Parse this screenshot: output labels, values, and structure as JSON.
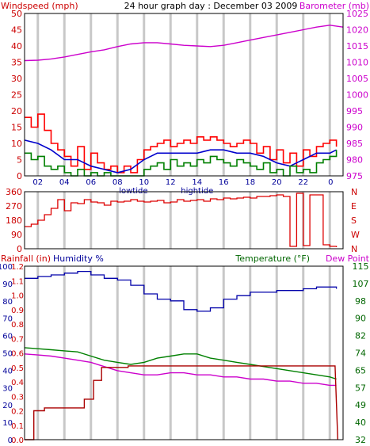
{
  "header": {
    "left_label": "Windspeed (mph)",
    "title": "24 hour graph day : December 03 2009",
    "right_label": "Barometer (mb)"
  },
  "colors": {
    "wind_axis": "#cc0000",
    "baro_axis": "#cc00cc",
    "humidity_axis": "#000099",
    "temp_axis": "#006600",
    "wind": "#ff0000",
    "gust_avg": "#0000cc",
    "wind_low": "#008000",
    "baro": "#cc00cc",
    "dir": "#dd0000",
    "humidity": "#0000aa",
    "temperature": "#008000",
    "dewpoint": "#cc00cc",
    "rain": "#aa0000",
    "grid": "#c8c8c8",
    "frame": "#000000"
  },
  "time_axis": {
    "ticks": [
      "02",
      "04",
      "06",
      "08",
      "10",
      "12",
      "14",
      "16",
      "18",
      "20",
      "22",
      "0"
    ],
    "tide_low": "lowtide",
    "tide_high": "hightide"
  },
  "chart_data": [
    {
      "type": "line",
      "name": "wind-barometer",
      "title": "24 hour graph day : December 03 2009",
      "ylabel_left": "Windspeed (mph)",
      "ylabel_right": "Barometer (mb)",
      "xlim": [
        0,
        24
      ],
      "ylim_left": [
        0,
        50
      ],
      "ylim_right": [
        975,
        1025
      ],
      "yticks_left": [
        "0",
        "5",
        "10",
        "15",
        "20",
        "25",
        "30",
        "35",
        "40",
        "45",
        "50"
      ],
      "yticks_right": [
        "975",
        "980",
        "985",
        "990",
        "995",
        "1000",
        "1005",
        "1010",
        "1015",
        "1020",
        "1025"
      ],
      "series": [
        {
          "axis": "right",
          "role": "baro",
          "x": [
            0,
            1,
            2,
            3,
            4,
            5,
            6,
            7,
            8,
            9,
            10,
            11,
            12,
            13,
            14,
            15,
            16,
            17,
            18,
            19,
            20,
            21,
            22,
            23,
            24
          ],
          "y": [
            1010.5,
            1010.6,
            1011,
            1011.6,
            1012.4,
            1013.2,
            1013.8,
            1014.8,
            1015.6,
            1016,
            1016,
            1015.6,
            1015.2,
            1015,
            1014.8,
            1015.2,
            1016,
            1016.8,
            1017.6,
            1018.4,
            1019.2,
            1020,
            1020.8,
            1021.4,
            1020.8
          ]
        },
        {
          "axis": "left",
          "role": "wind",
          "x": [
            0,
            0.5,
            1,
            1.5,
            2,
            2.5,
            3,
            3.5,
            4,
            4.5,
            5,
            5.5,
            6,
            6.5,
            7,
            7.5,
            8,
            8.5,
            9,
            9.5,
            10,
            10.5,
            11,
            11.5,
            12,
            12.5,
            13,
            13.5,
            14,
            14.5,
            15,
            15.5,
            16,
            16.5,
            17,
            17.5,
            18,
            18.5,
            19,
            19.5,
            20,
            20.5,
            21,
            21.5,
            22,
            22.5,
            23,
            23.5
          ],
          "y": [
            18,
            15,
            19,
            14,
            10,
            8,
            6,
            3,
            9,
            2,
            7,
            4,
            2,
            3,
            1,
            3,
            1,
            5,
            8,
            9,
            10,
            11,
            9,
            10,
            11,
            10,
            12,
            11,
            12,
            11,
            10,
            9,
            10,
            11,
            10,
            7,
            9,
            5,
            8,
            4,
            7,
            3,
            8,
            6,
            9,
            10,
            11,
            9
          ]
        },
        {
          "axis": "left",
          "role": "avg",
          "x": [
            0,
            1,
            2,
            3,
            4,
            5,
            6,
            7,
            8,
            9,
            10,
            11,
            12,
            13,
            14,
            15,
            16,
            17,
            18,
            19,
            20,
            21,
            22,
            23,
            23.5
          ],
          "y": [
            11,
            10,
            8,
            5,
            5,
            3,
            2,
            1,
            2,
            5,
            7,
            7,
            7,
            7,
            8,
            8,
            7,
            7,
            6,
            4,
            3,
            5,
            7,
            7,
            8
          ]
        },
        {
          "axis": "left",
          "role": "low",
          "x": [
            0,
            0.5,
            1,
            1.5,
            2,
            2.5,
            3,
            3.5,
            4,
            4.5,
            5,
            5.5,
            6,
            6.5,
            7,
            7.5,
            8,
            8.5,
            9,
            9.5,
            10,
            10.5,
            11,
            11.5,
            12,
            12.5,
            13,
            13.5,
            14,
            14.5,
            15,
            15.5,
            16,
            16.5,
            17,
            17.5,
            18,
            18.5,
            19,
            19.5,
            20,
            20.5,
            21,
            21.5,
            22,
            22.5,
            23,
            23.5
          ],
          "y": [
            7,
            5,
            6,
            3,
            2,
            3,
            1,
            0,
            2,
            0,
            1,
            0,
            1,
            0,
            0,
            0,
            0,
            0,
            2,
            3,
            4,
            2,
            5,
            3,
            4,
            3,
            5,
            4,
            6,
            5,
            4,
            3,
            5,
            4,
            3,
            2,
            4,
            1,
            2,
            0,
            3,
            1,
            2,
            1,
            4,
            5,
            6,
            8
          ]
        }
      ]
    },
    {
      "type": "line",
      "name": "wind-direction",
      "ylabel_right": "",
      "xlim": [
        0,
        24
      ],
      "ylim": [
        0,
        360
      ],
      "yticks_left": [
        "0",
        "90",
        "180",
        "270",
        "360"
      ],
      "yticks_right": [
        "N",
        "W",
        "S",
        "E",
        "N"
      ],
      "series": [
        {
          "role": "dir",
          "x": [
            0,
            0.5,
            1,
            1.5,
            2,
            2.5,
            3,
            3.5,
            4,
            4.5,
            5,
            5.5,
            6,
            6.5,
            7,
            7.5,
            8,
            8.5,
            9,
            9.5,
            10,
            10.5,
            11,
            11.5,
            12,
            12.5,
            13,
            13.5,
            14,
            14.5,
            15,
            15.5,
            16,
            16.5,
            17,
            17.5,
            18,
            18.5,
            19,
            19.5,
            20,
            20.5,
            21,
            21.5,
            22,
            22.5,
            23,
            23.5
          ],
          "y": [
            140,
            155,
            180,
            215,
            255,
            310,
            240,
            290,
            285,
            310,
            295,
            290,
            275,
            300,
            295,
            300,
            310,
            300,
            295,
            300,
            305,
            290,
            295,
            310,
            300,
            305,
            310,
            300,
            315,
            310,
            320,
            315,
            320,
            325,
            320,
            330,
            330,
            335,
            340,
            330,
            15,
            350,
            20,
            340,
            340,
            25,
            15,
            10
          ]
        }
      ]
    },
    {
      "type": "line",
      "name": "rain-humidity-temperature",
      "ylabel_left": "Rainfall (in)",
      "ylabel_humidity": "Humidity %",
      "ylabel_right": "Temperature (°F)",
      "ylabel_right2": "Dew Point",
      "xlim": [
        0,
        24
      ],
      "ylim_rain": [
        0,
        1.2
      ],
      "ylim_humidity": [
        0,
        100
      ],
      "ylim_temperature": [
        32,
        115
      ],
      "yticks_rain": [
        "0.0",
        "0.1",
        "0.2",
        "0.3",
        "0.4",
        "0.5",
        "0.6",
        "0.7",
        "0.8",
        "0.9",
        "1.0",
        "1.1",
        "1.2"
      ],
      "yticks_humidity": [
        "0",
        "10",
        "20",
        "30",
        "40",
        "50",
        "60",
        "70",
        "80",
        "90",
        "100"
      ],
      "yticks_temperature": [
        "32",
        "40",
        "49",
        "57",
        "65",
        "74",
        "82",
        "90",
        "98",
        "107",
        "115"
      ],
      "series": [
        {
          "role": "humidity",
          "axis": "humidity",
          "x": [
            0,
            1,
            2,
            3,
            4,
            5,
            6,
            7,
            8,
            9,
            10,
            11,
            12,
            13,
            14,
            15,
            16,
            17,
            18,
            19,
            20,
            21,
            22,
            23,
            23.5
          ],
          "y": [
            93,
            94,
            95,
            96,
            97,
            95,
            93,
            92,
            89,
            84,
            81,
            80,
            75,
            74,
            76,
            81,
            83,
            85,
            85,
            86,
            86,
            87,
            88,
            88,
            87
          ]
        },
        {
          "role": "temperature",
          "axis": "temperature",
          "x": [
            0,
            1,
            2,
            3,
            4,
            5,
            6,
            7,
            8,
            9,
            10,
            11,
            12,
            13,
            14,
            15,
            16,
            17,
            18,
            19,
            20,
            21,
            22,
            23,
            23.5
          ],
          "y": [
            76,
            75.5,
            75,
            74.5,
            74,
            72,
            70,
            69,
            68,
            69,
            71,
            72,
            73,
            73,
            71,
            70,
            69,
            68,
            67,
            66,
            65,
            64,
            63,
            62,
            61
          ]
        },
        {
          "role": "dewpoint",
          "axis": "temperature",
          "x": [
            0,
            1,
            2,
            3,
            4,
            5,
            6,
            7,
            8,
            9,
            10,
            11,
            12,
            13,
            14,
            15,
            16,
            17,
            18,
            19,
            20,
            21,
            22,
            23,
            23.5
          ],
          "y": [
            73,
            72.5,
            72,
            71,
            70,
            69,
            67,
            65,
            64,
            63,
            63,
            64,
            64,
            63,
            63,
            62,
            62,
            61,
            61,
            60,
            60,
            59,
            59,
            58,
            58
          ]
        },
        {
          "role": "rain",
          "axis": "rain",
          "x": [
            0,
            0.7,
            0.7,
            1.5,
            1.5,
            4.5,
            4.5,
            5.2,
            5.2,
            5.8,
            5.8,
            7.8,
            7.8,
            23.4,
            23.6
          ],
          "y": [
            0,
            0,
            0.2,
            0.2,
            0.22,
            0.22,
            0.28,
            0.28,
            0.41,
            0.41,
            0.5,
            0.5,
            0.51,
            0.51,
            0
          ]
        }
      ]
    }
  ]
}
